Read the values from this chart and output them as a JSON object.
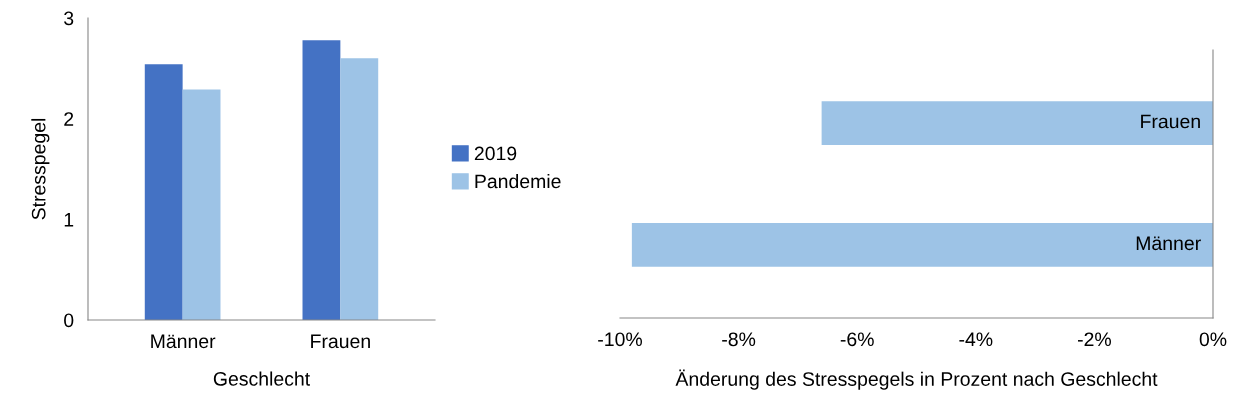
{
  "chart_data": [
    {
      "type": "bar",
      "xlabel": "Geschlecht",
      "ylabel": "Stresspegel",
      "categories": [
        "Männer",
        "Frauen"
      ],
      "series": [
        {
          "name": "2019",
          "color": "#4472c4",
          "values": [
            2.54,
            2.78
          ]
        },
        {
          "name": "Pandemie",
          "color": "#9dc3e6",
          "values": [
            2.29,
            2.6
          ]
        }
      ],
      "ylim": [
        0,
        3
      ],
      "yticks": [
        0,
        1,
        2,
        3
      ],
      "grid": false,
      "legend": "right"
    },
    {
      "type": "bar",
      "orientation": "horizontal",
      "xlabel": "Änderung des Stresspegels in Prozent nach Geschlecht",
      "categories": [
        "Frauen",
        "Männer"
      ],
      "values": [
        -6.6,
        -9.8
      ],
      "color": "#9dc3e6",
      "xlim": [
        -10,
        0
      ],
      "xticks": [
        {
          "value": -10,
          "label": "-10%"
        },
        {
          "value": -8,
          "label": "-8%"
        },
        {
          "value": -6,
          "label": "-6%"
        },
        {
          "value": -4,
          "label": "-4%"
        },
        {
          "value": -2,
          "label": "-2%"
        },
        {
          "value": 0,
          "label": "0%"
        }
      ],
      "grid": false,
      "tick_labels": "x"
    }
  ]
}
